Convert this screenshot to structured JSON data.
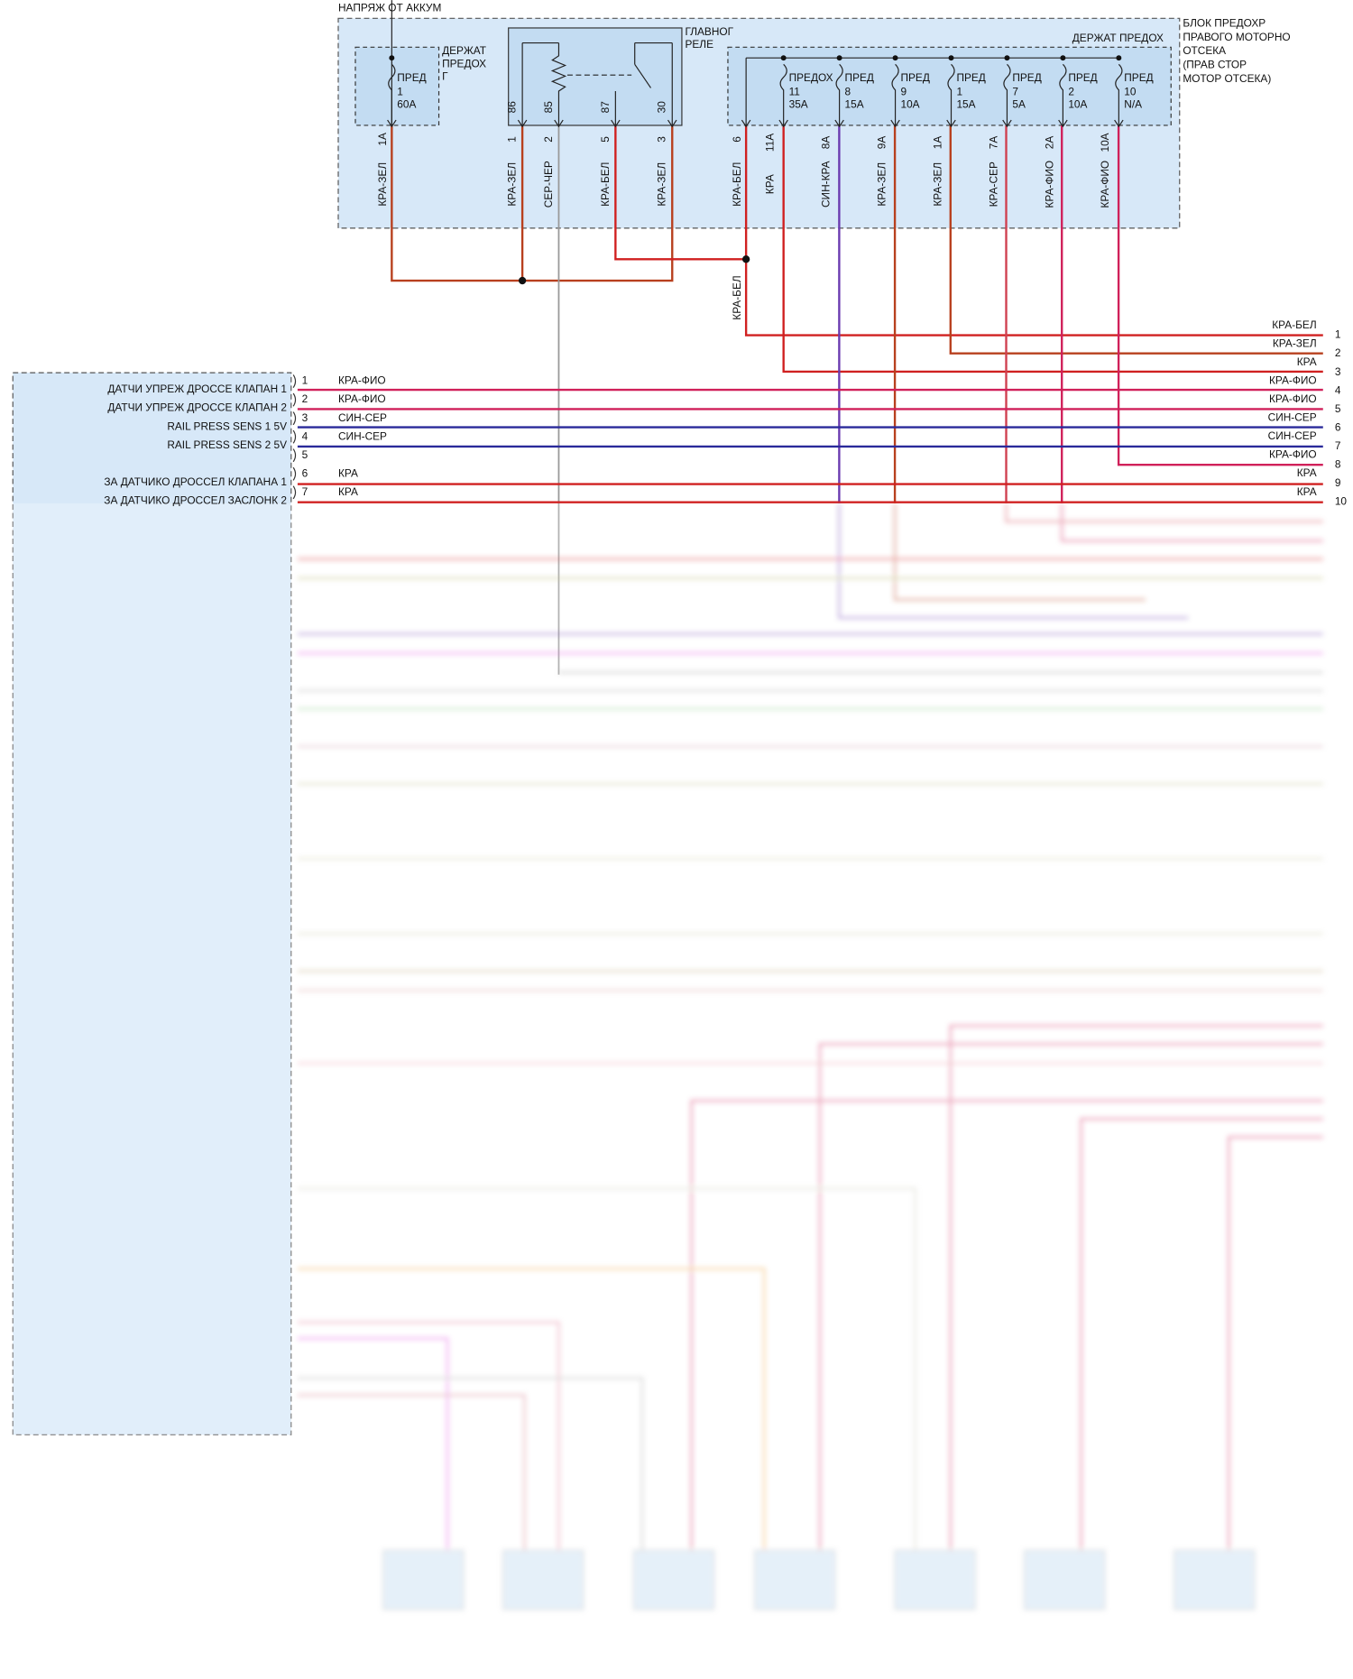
{
  "battery_label": "НАПРЯЖ ОТ АККУМ",
  "fuse_block": {
    "title_lines": [
      "БЛОК ПРЕДОХР",
      "ПРАВОГО МОТОРНО",
      "ОТСЕКА",
      "(ПРАВ СТОР",
      "МОТОР ОТСЕКА)"
    ]
  },
  "holder_g": {
    "label_lines": [
      "ДЕРЖАТ",
      "ПРЕДОХ",
      "Г"
    ],
    "fuse": {
      "name": "ПРЕД",
      "number": "1",
      "rating": "60A",
      "pin": "1A",
      "wire": "КРА-ЗЕЛ"
    }
  },
  "relay": {
    "label_lines": [
      "ГЛАВНОГ",
      "РЕЛЕ"
    ],
    "terminals": [
      {
        "terminal": "86",
        "pin": "1",
        "wire": "КРА-ЗЕЛ"
      },
      {
        "terminal": "85",
        "pin": "2",
        "wire": "СЕР-ЧЕР"
      },
      {
        "terminal": "87",
        "pin": "5",
        "wire": "КРА-БЕЛ"
      },
      {
        "terminal": "30",
        "pin": "3",
        "wire": "КРА-ЗЕЛ"
      }
    ]
  },
  "fuse_holder": {
    "label": "ДЕРЖАТ ПРЕДОХ",
    "extra_pin": {
      "pin": "6",
      "wire": "КРА-БЕЛ"
    },
    "fuses": [
      {
        "name": "ПРЕДОХ",
        "number": "11",
        "rating": "35A",
        "pin": "11A",
        "wire": "КРА"
      },
      {
        "name": "ПРЕД",
        "number": "8",
        "rating": "15A",
        "pin": "8A",
        "wire": "СИН-КРА"
      },
      {
        "name": "ПРЕД",
        "number": "9",
        "rating": "10A",
        "pin": "9A",
        "wire": "КРА-ЗЕЛ"
      },
      {
        "name": "ПРЕД",
        "number": "1",
        "rating": "15A",
        "pin": "1A",
        "wire": "КРА-ЗЕЛ"
      },
      {
        "name": "ПРЕД",
        "number": "7",
        "rating": "5A",
        "pin": "7A",
        "wire": "КРА-СЕР"
      },
      {
        "name": "ПРЕД",
        "number": "2",
        "rating": "10A",
        "pin": "2A",
        "wire": "КРА-ФИО"
      },
      {
        "name": "ПРЕД",
        "number": "10",
        "rating": "N/A",
        "pin": "10A",
        "wire": "КРА-ФИО"
      }
    ]
  },
  "splice_wire": "КРА-БЕЛ",
  "right_connector": {
    "rows": [
      {
        "pin": "1",
        "wire": "КРА-БЕЛ"
      },
      {
        "pin": "2",
        "wire": "КРА-ЗЕЛ"
      },
      {
        "pin": "3",
        "wire": "КРА"
      },
      {
        "pin": "4",
        "wire": "КРА-ФИО"
      },
      {
        "pin": "5",
        "wire": "КРА-ФИО"
      },
      {
        "pin": "6",
        "wire": "СИН-СЕР"
      },
      {
        "pin": "7",
        "wire": "СИН-СЕР"
      },
      {
        "pin": "8",
        "wire": "КРА-ФИО"
      },
      {
        "pin": "9",
        "wire": "КРА"
      },
      {
        "pin": "10",
        "wire": "КРА"
      }
    ]
  },
  "module": {
    "rows": [
      {
        "pin": "1",
        "label": "ДАТЧИ УПРЕЖ ДРОССЕ КЛАПАН 1",
        "wire": "КРА-ФИО"
      },
      {
        "pin": "2",
        "label": "ДАТЧИ УПРЕЖ ДРОССЕ КЛАПАН 2",
        "wire": "КРА-ФИО"
      },
      {
        "pin": "3",
        "label": "RAIL PRESS SENS 1 5V",
        "wire": "СИН-СЕР"
      },
      {
        "pin": "4",
        "label": "RAIL PRESS SENS 2 5V",
        "wire": "СИН-СЕР"
      },
      {
        "pin": "5"
      },
      {
        "pin": "6",
        "label": "ЗА ДАТЧИКО ДРОССЕЛ КЛАПАНА 1",
        "wire": "КРА"
      },
      {
        "pin": "7",
        "label": "ЗА ДАТЧИКО ДРОССЕЛ ЗАСЛОНК 2",
        "wire": "КРА"
      }
    ]
  }
}
